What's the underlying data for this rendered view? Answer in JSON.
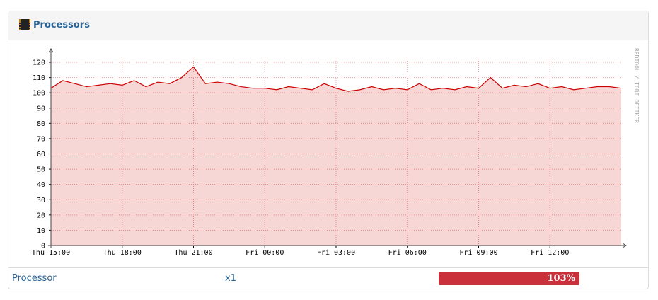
{
  "header": {
    "title": "Processors"
  },
  "chart_data": {
    "type": "area",
    "x": [
      0,
      0.5,
      1,
      1.5,
      2,
      2.5,
      3,
      3.5,
      4,
      4.5,
      5,
      5.5,
      6,
      6.5,
      7,
      7.5,
      8,
      8.5,
      9,
      9.5,
      10,
      10.5,
      11,
      11.5,
      12,
      12.5,
      13,
      13.5,
      14,
      14.5,
      15,
      15.5,
      16,
      16.5,
      17,
      17.5,
      18,
      18.5,
      19,
      19.5,
      20,
      20.5,
      21,
      21.5,
      22,
      22.5,
      23,
      23.5,
      24
    ],
    "series": [
      {
        "color": "#cc0000",
        "values": [
          103,
          108,
          106,
          104,
          105,
          106,
          105,
          108,
          104,
          107,
          106,
          110,
          117,
          106,
          107,
          106,
          104,
          103,
          103,
          102,
          104,
          103,
          102,
          106,
          103,
          101,
          102,
          104,
          102,
          103,
          102,
          106,
          102,
          103,
          102,
          104,
          103,
          110,
          103,
          105,
          104,
          106,
          103,
          104,
          102,
          103,
          104,
          104,
          103
        ]
      }
    ],
    "xlim": [
      0,
      24
    ],
    "xticks": [
      {
        "value": 0,
        "label": "Thu 15:00"
      },
      {
        "value": 3,
        "label": "Thu 18:00"
      },
      {
        "value": 6,
        "label": "Thu 21:00"
      },
      {
        "value": 9,
        "label": "Fri 00:00"
      },
      {
        "value": 12,
        "label": "Fri 03:00"
      },
      {
        "value": 15,
        "label": "Fri 06:00"
      },
      {
        "value": 18,
        "label": "Fri 09:00"
      },
      {
        "value": 21,
        "label": "Fri 12:00"
      }
    ],
    "ylim": [
      0,
      120
    ],
    "yticks": [
      0,
      10,
      20,
      30,
      40,
      50,
      60,
      70,
      80,
      90,
      100,
      110,
      120
    ],
    "grid": true,
    "watermark": "RRDTOOL / TOBI OETIKER"
  },
  "table": {
    "rows": [
      {
        "name": "Processor",
        "count": "x1",
        "value": 103,
        "value_label": "103%"
      }
    ]
  }
}
